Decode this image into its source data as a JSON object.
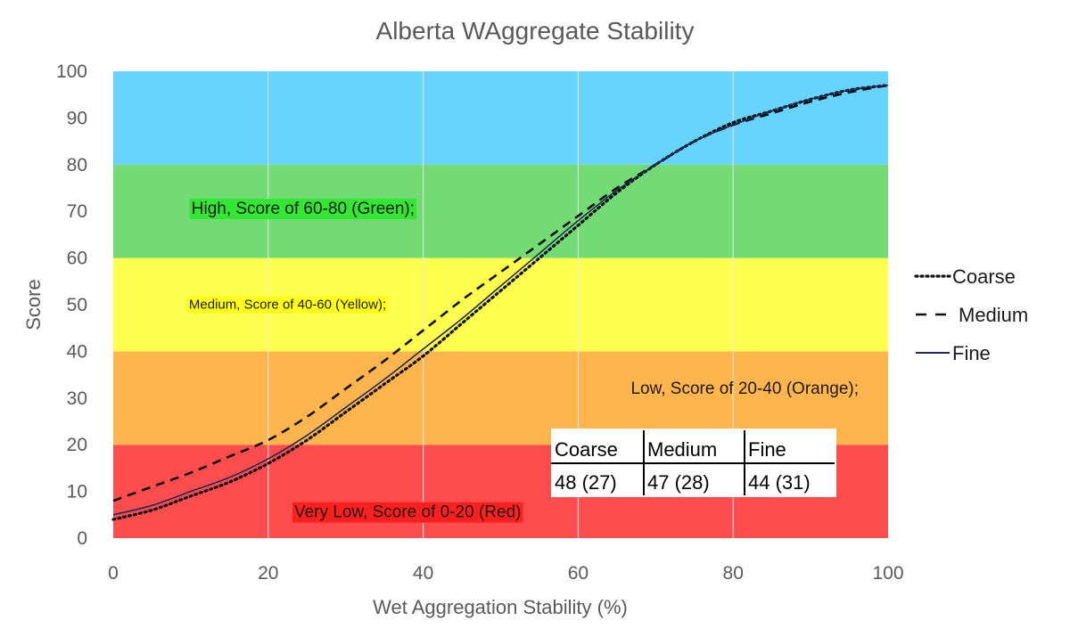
{
  "chart_data": {
    "type": "line",
    "title": "Alberta WAggregate Stability",
    "xlabel": "Wet Aggregation Stability (%)",
    "ylabel": "Score",
    "xlim": [
      0,
      100
    ],
    "ylim": [
      0,
      100
    ],
    "x_ticks": [
      "0",
      "20",
      "40",
      "60",
      "80",
      "100"
    ],
    "y_ticks": [
      "0",
      "10",
      "20",
      "30",
      "40",
      "50",
      "60",
      "70",
      "80",
      "90",
      "100"
    ],
    "grid": "vertical",
    "legend_position": "right",
    "bands": [
      {
        "from": 0,
        "to": 20,
        "color": "#ff4d4d",
        "label": "Very Low, Score of 0-20 (Red)",
        "label_bg": "#ff1f1f",
        "label_at": [
          38,
          5.5
        ]
      },
      {
        "from": 20,
        "to": 40,
        "color": "#ffb54d",
        "label": "Low, Score of 20-40 (Orange);",
        "label_bg": "",
        "label_at": [
          81.5,
          32
        ]
      },
      {
        "from": 40,
        "to": 60,
        "color": "#ffff4d",
        "label": "Medium, Score of 40-60 (Yellow);",
        "label_bg": "#ffff1a",
        "label_at": [
          22.5,
          50
        ]
      },
      {
        "from": 60,
        "to": 80,
        "color": "#73db73",
        "label": "High, Score of 60-80 (Green);",
        "label_bg": "#33e633",
        "label_at": [
          24.5,
          70.5
        ]
      },
      {
        "from": 80,
        "to": 100,
        "color": "#66d4ff",
        "label": "",
        "label_bg": "",
        "label_at": [
          0,
          0
        ]
      }
    ],
    "series": [
      {
        "name": "Coarse",
        "dash": "dotted",
        "x": [
          0,
          5,
          10,
          15,
          20,
          25,
          30,
          35,
          40,
          45,
          50,
          55,
          60,
          65,
          70,
          75,
          80,
          85,
          90,
          95,
          100
        ],
        "y": [
          4,
          6,
          9,
          12,
          16,
          21,
          27,
          33,
          39,
          46,
          53,
          60,
          67,
          74,
          80,
          85,
          89,
          91.5,
          94,
          96,
          97
        ]
      },
      {
        "name": "Medium",
        "dash": "dashed",
        "x": [
          0,
          5,
          10,
          15,
          20,
          25,
          30,
          35,
          40,
          45,
          50,
          55,
          60,
          65,
          70,
          75,
          80,
          85,
          90,
          95,
          100
        ],
        "y": [
          8,
          11,
          14,
          17.5,
          21,
          26,
          32,
          38,
          44.5,
          51,
          57,
          63,
          69,
          75,
          80,
          85,
          88.5,
          91,
          93.5,
          95.5,
          97
        ]
      },
      {
        "name": "Fine",
        "dash": "solid",
        "x": [
          0,
          5,
          10,
          15,
          20,
          25,
          30,
          35,
          40,
          45,
          50,
          55,
          60,
          65,
          70,
          75,
          80,
          85,
          90,
          95,
          100
        ],
        "y": [
          5,
          7,
          10,
          13,
          17,
          22,
          28,
          34,
          40.5,
          47,
          54,
          61,
          68,
          74.5,
          80,
          85,
          88.5,
          91.5,
          94,
          96,
          97
        ]
      }
    ],
    "table": {
      "headers": [
        "Coarse",
        "Medium",
        "Fine"
      ],
      "values": [
        "48 (27)",
        "47 (28)",
        "44 (31)"
      ]
    }
  }
}
